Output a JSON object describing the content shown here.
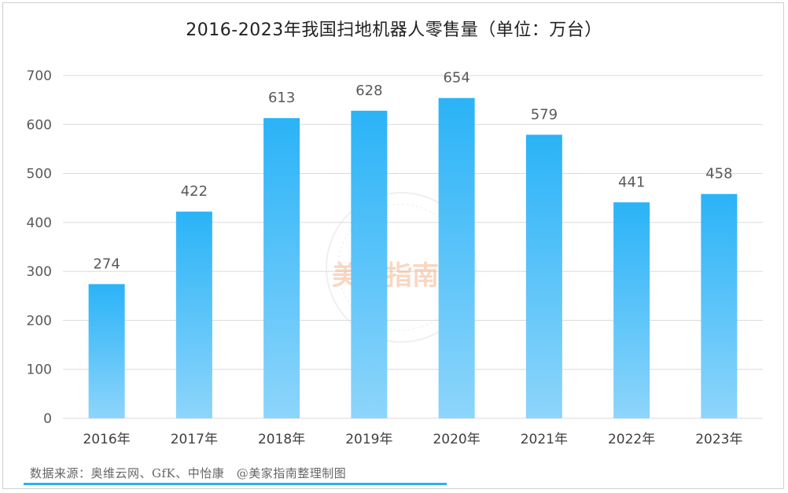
{
  "chart_data": {
    "type": "bar",
    "title": "2016-2023年我国扫地机器人零售量（单位：万台）",
    "categories": [
      "2016年",
      "2017年",
      "2018年",
      "2019年",
      "2020年",
      "2021年",
      "2022年",
      "2023年"
    ],
    "values": [
      274,
      422,
      613,
      628,
      654,
      579,
      441,
      458
    ],
    "ylim": [
      0,
      700
    ],
    "yticks": [
      0,
      100,
      200,
      300,
      400,
      500,
      600,
      700
    ],
    "xlabel": "",
    "ylabel": "",
    "grid": true,
    "data_labels": true,
    "bar_color_top": "#2ab3f7",
    "bar_color_bottom": "#8dd5fb"
  },
  "footer": {
    "source": "数据来源：奥维云网、GfK、中怡康　@美家指南整理制图",
    "accent_color": "#2ab3f0"
  },
  "watermark": {
    "text": "美家指南",
    "color": "#f0a878"
  }
}
